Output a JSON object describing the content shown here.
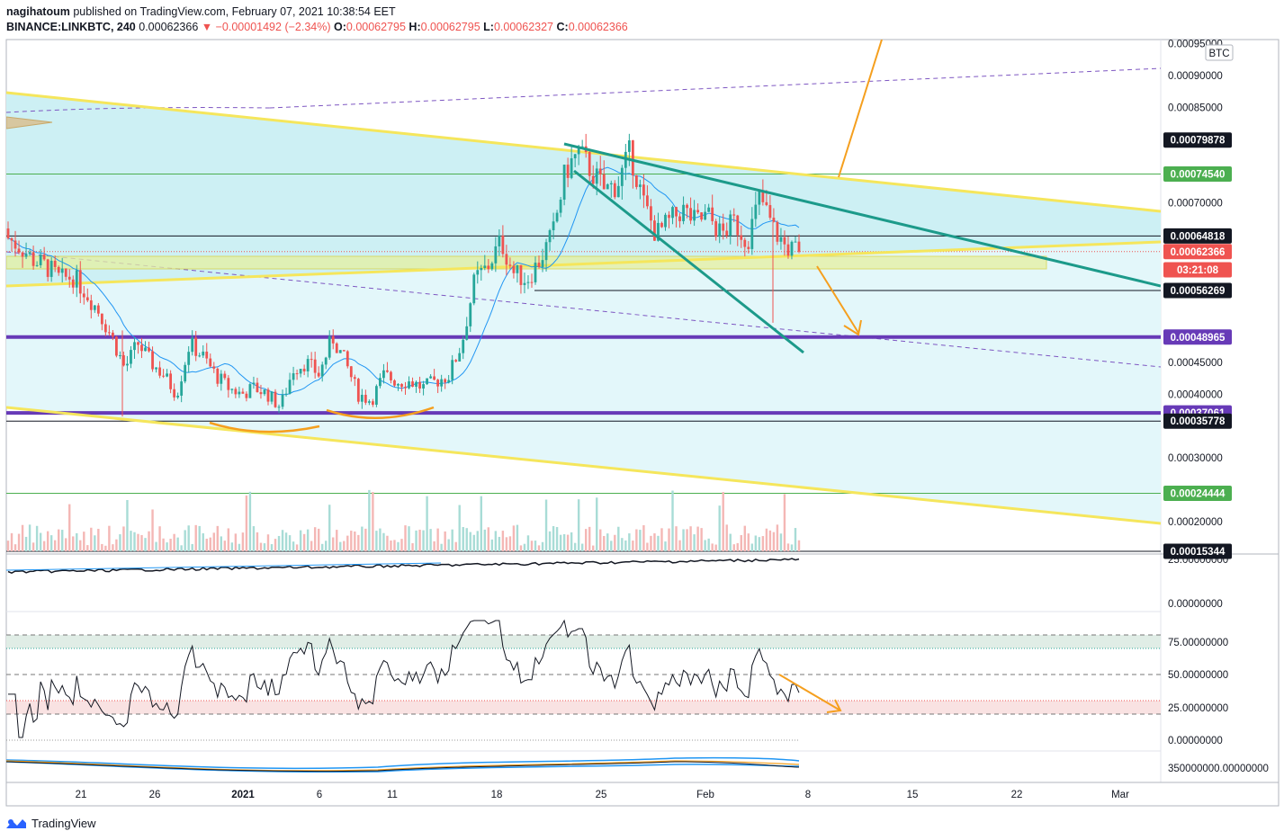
{
  "header": {
    "publisher_line": "nagihatoum published on TradingView.com, February 07, 2021 10:38:54 EET",
    "publisher": "nagihatoum",
    "published_text": " published on TradingView.com, February 07, 2021 10:38:54 EET",
    "symbol": "BINANCE:LINKBTC, 240",
    "last": "0.00062366",
    "change": "▼ −0.00001492 (−2.34%)",
    "o_label": "O:",
    "o": "0.00062795",
    "h_label": "H:",
    "h": "0.00062795",
    "l_label": "L:",
    "l": "0.00062327",
    "c_label": "C:",
    "c": "0.00062366"
  },
  "colors": {
    "channel_fill": "#e3f7fa",
    "channel_fill_inner": "#c9eff4",
    "yellow_line": "#f5e65c",
    "teal_line": "#1c9a8a",
    "purple_line": "#673ab7",
    "orange_arrow": "#f59f1e",
    "green_line": "#4caf50",
    "ma_line": "#2196f3",
    "up_candle": "#26a69a",
    "down_candle": "#ef5350",
    "black_tag": "#131722",
    "green_tag": "#4caf50",
    "purple_tag": "#673ab7",
    "red_tag": "#ef5350"
  },
  "chart_data": {
    "type": "candlestick",
    "symbol": "BINANCE:LINKBTC",
    "interval": "240",
    "currency_badge": "BTC",
    "price_axis": {
      "ticks": [
        "0.00095000",
        "0.00090000",
        "0.00085000",
        "0.00070000",
        "0.00045000",
        "0.00040000",
        "0.00030000",
        "0.00020000"
      ],
      "tick_values": [
        0.00095,
        0.0009,
        0.00085,
        0.0007,
        0.00045,
        0.0004,
        0.0003,
        0.0002
      ],
      "range": [
        0.000149,
        0.000958
      ]
    },
    "tagged_levels": [
      {
        "label": "0.00079878",
        "value": 0.00079878,
        "color": "black",
        "line": "none"
      },
      {
        "label": "0.00074540",
        "value": 0.0007454,
        "color": "green",
        "line": "green"
      },
      {
        "label": "0.00064818",
        "value": 0.00064818,
        "color": "black",
        "line": "black"
      },
      {
        "label": "0.00062366",
        "value": 0.00062366,
        "color": "red",
        "line": "dotted-red"
      },
      {
        "label": "03:21:08",
        "value": 0.0006,
        "color": "red",
        "line": "none"
      },
      {
        "label": "0.00056269",
        "value": 0.00056269,
        "color": "black",
        "line": "black"
      },
      {
        "label": "0.00048965",
        "value": 0.00048965,
        "color": "purple",
        "line": "purple"
      },
      {
        "label": "0.00037061",
        "value": 0.00037061,
        "color": "purple",
        "line": "purple"
      },
      {
        "label": "0.00035778",
        "value": 0.00035778,
        "color": "black",
        "line": "black"
      },
      {
        "label": "0.00024444",
        "value": 0.00024444,
        "color": "green",
        "line": "green"
      },
      {
        "label": "0.00015344",
        "value": 0.00015344,
        "color": "black",
        "line": "black"
      }
    ],
    "x_axis": {
      "labels": [
        "21",
        "26",
        "2021",
        "6",
        "11",
        "18",
        "25",
        "Feb",
        "8",
        "15",
        "22",
        "Mar"
      ]
    },
    "candles_approx": [
      [
        0.00066,
        0.00067,
        0.00063,
        0.000645
      ],
      [
        0.000645,
        0.00066,
        0.00062,
        0.00063
      ],
      [
        0.00063,
        0.00064,
        0.000605,
        0.00061
      ],
      [
        0.00061,
        0.000625,
        0.00059,
        0.0006
      ],
      [
        0.0006,
        0.000615,
        0.00057,
        0.00058
      ],
      [
        0.00058,
        0.0006,
        0.00056,
        0.000585
      ],
      [
        0.000585,
        0.000595,
        0.00055,
        0.00056
      ],
      [
        0.00056,
        0.00057,
        0.00052,
        0.00053
      ],
      [
        0.00053,
        0.00054,
        0.00048,
        0.00049
      ],
      [
        0.00049,
        0.0005,
        0.00036,
        0.00044
      ],
      [
        0.00044,
        0.00049,
        0.00043,
        0.00048
      ],
      [
        0.00048,
        0.00049,
        0.00044,
        0.00045
      ],
      [
        0.00045,
        0.00047,
        0.00042,
        0.00043
      ],
      [
        0.00043,
        0.00044,
        0.00039,
        0.0004
      ],
      [
        0.0004,
        0.00049,
        0.00039,
        0.00048
      ],
      [
        0.00048,
        0.00049,
        0.00045,
        0.00046
      ],
      [
        0.00046,
        0.00047,
        0.00042,
        0.00043
      ],
      [
        0.00043,
        0.00044,
        0.0004,
        0.00041
      ],
      [
        0.00041,
        0.00042,
        0.00039,
        0.0004
      ],
      [
        0.0004,
        0.00042,
        0.00039,
        0.00041
      ],
      [
        0.00041,
        0.00043,
        0.00039,
        0.0004
      ],
      [
        0.0004,
        0.00041,
        0.00036,
        0.00038
      ],
      [
        0.00038,
        0.00045,
        0.00037,
        0.00044
      ],
      [
        0.00044,
        0.00047,
        0.00043,
        0.00045
      ],
      [
        0.00045,
        0.00046,
        0.00042,
        0.00043
      ],
      [
        0.00043,
        0.0005,
        0.00042,
        0.00049
      ],
      [
        0.00049,
        0.0005,
        0.00044,
        0.00045
      ],
      [
        0.00045,
        0.00046,
        0.00039,
        0.0004
      ],
      [
        0.0004,
        0.00041,
        0.00037,
        0.00039
      ],
      [
        0.00039,
        0.00044,
        0.00038,
        0.00043
      ],
      [
        0.00043,
        0.00044,
        0.00041,
        0.00042
      ],
      [
        0.00042,
        0.00043,
        0.0004,
        0.00042
      ],
      [
        0.00042,
        0.00043,
        0.0004,
        0.00041
      ],
      [
        0.00041,
        0.00043,
        0.0004,
        0.00042
      ],
      [
        0.00042,
        0.00044,
        0.00041,
        0.00043
      ],
      [
        0.00043,
        0.00049,
        0.00042,
        0.00048
      ],
      [
        0.00048,
        0.00059,
        0.00047,
        0.00058
      ],
      [
        0.00058,
        0.00062,
        0.00056,
        0.0006
      ],
      [
        0.0006,
        0.00066,
        0.00058,
        0.00064
      ],
      [
        0.00064,
        0.00065,
        0.00057,
        0.00059
      ],
      [
        0.00059,
        0.0006,
        0.00057,
        0.00058
      ],
      [
        0.00058,
        0.00062,
        0.00057,
        0.00061
      ],
      [
        0.00061,
        0.00066,
        0.0006,
        0.00065
      ],
      [
        0.00065,
        0.00076,
        0.00064,
        0.00075
      ],
      [
        0.00075,
        0.0008,
        0.00073,
        0.00078
      ],
      [
        0.00078,
        0.0008,
        0.00074,
        0.00075
      ],
      [
        0.00075,
        0.00076,
        0.00071,
        0.00072
      ],
      [
        0.00072,
        0.00074,
        0.0007,
        0.00073
      ],
      [
        0.00073,
        0.00079,
        0.00072,
        0.00078
      ],
      [
        0.00078,
        0.00079,
        0.00069,
        0.0007
      ],
      [
        0.0007,
        0.00071,
        0.00061,
        0.00065
      ],
      [
        0.00065,
        0.00068,
        0.00063,
        0.00067
      ],
      [
        0.00067,
        0.0007,
        0.00066,
        0.00069
      ],
      [
        0.00069,
        0.0007,
        0.00066,
        0.00067
      ],
      [
        0.00067,
        0.00069,
        0.00065,
        0.00068
      ],
      [
        0.00068,
        0.00069,
        0.00064,
        0.00065
      ],
      [
        0.00065,
        0.00068,
        0.00064,
        0.00067
      ],
      [
        0.00067,
        0.00068,
        0.00063,
        0.00064
      ],
      [
        0.00064,
        0.00072,
        0.00063,
        0.00071
      ],
      [
        0.00071,
        0.00072,
        0.00052,
        0.00066
      ],
      [
        0.00066,
        0.00067,
        0.00061,
        0.00063
      ],
      [
        0.00063,
        0.00064,
        0.00062,
        0.00062366
      ]
    ],
    "volume_pane": {
      "description": "volume histogram"
    },
    "indicator_pane_1": {
      "axis_ticks": [
        "25.00000000",
        "0.00000000"
      ]
    },
    "rsi_pane": {
      "axis_ticks": [
        "75.00000000",
        "50.00000000",
        "25.00000000",
        "0.00000000"
      ],
      "levels": [
        80,
        70,
        50,
        30,
        20
      ]
    },
    "indicator_pane_3": {
      "axis_ticks": [
        "350000000.00000000"
      ]
    }
  },
  "footer": {
    "brand": "TradingView"
  }
}
